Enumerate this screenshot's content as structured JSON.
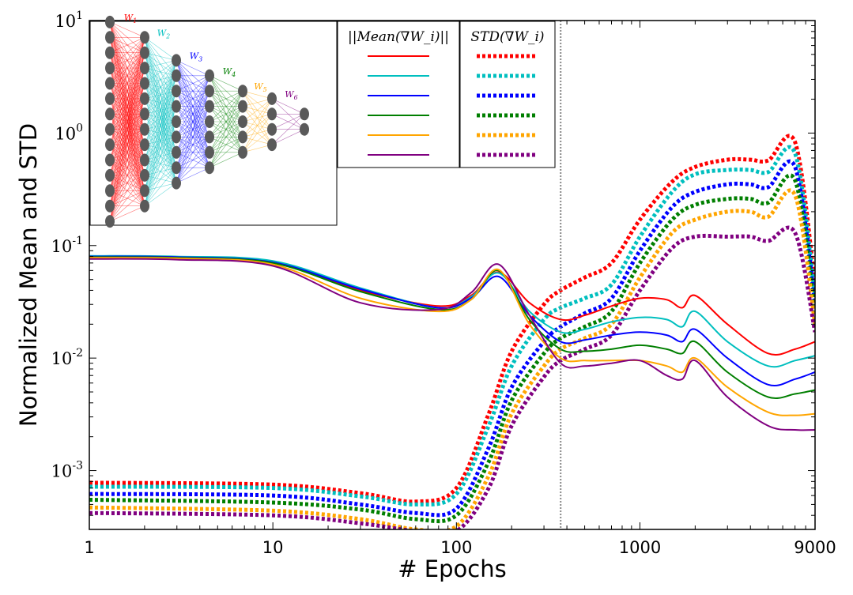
{
  "chart_data": {
    "type": "line",
    "xlabel": "# Epochs",
    "ylabel": "Normalized Mean and STD",
    "xscale": "log",
    "yscale": "log",
    "xlim": [
      1,
      9000
    ],
    "ylim": [
      0.0003,
      10
    ],
    "x_ticks": [
      "1",
      "10",
      "100",
      "1000",
      "9000"
    ],
    "x_tick_values": [
      1,
      10,
      100,
      1000,
      9000
    ],
    "y_ticks": [
      {
        "base": "10",
        "exp": "-3",
        "value": 0.001
      },
      {
        "base": "10",
        "exp": "-2",
        "value": 0.01
      },
      {
        "base": "10",
        "exp": "-1",
        "value": 0.1
      },
      {
        "base": "10",
        "exp": "0",
        "value": 1
      },
      {
        "base": "10",
        "exp": "1",
        "value": 10
      }
    ],
    "vline_x": 370,
    "grid": false,
    "legend": {
      "position": "top",
      "mean_header": "||Mean(∇W_i)||",
      "std_header": "STD(∇W_i)"
    },
    "inset": {
      "position": "top-left",
      "layers": [
        14,
        12,
        9,
        7,
        5,
        4,
        2
      ],
      "weight_labels": [
        "W1",
        "W2",
        "W3",
        "W4",
        "W5",
        "W6"
      ]
    },
    "series": [
      {
        "layer": "W1",
        "color": "#ff0000",
        "mean": {
          "x": [
            1,
            3,
            10,
            30,
            80,
            120,
            170,
            250,
            370,
            500,
            700,
            1000,
            1400,
            1700,
            2000,
            3000,
            5000,
            7000,
            9000
          ],
          "y": [
            0.079,
            0.078,
            0.07,
            0.04,
            0.029,
            0.036,
            0.058,
            0.031,
            0.022,
            0.024,
            0.029,
            0.034,
            0.033,
            0.028,
            0.036,
            0.02,
            0.011,
            0.012,
            0.014
          ]
        },
        "std": {
          "x": [
            1,
            10,
            30,
            60,
            100,
            150,
            200,
            300,
            370,
            500,
            700,
            1000,
            1500,
            2000,
            3000,
            4000,
            5000,
            7000,
            9000
          ],
          "y": [
            0.00078,
            0.00075,
            0.00063,
            0.00053,
            0.0007,
            0.0032,
            0.0115,
            0.03,
            0.04,
            0.052,
            0.07,
            0.17,
            0.37,
            0.5,
            0.58,
            0.58,
            0.57,
            0.83,
            0.045
          ]
        }
      },
      {
        "layer": "W2",
        "color": "#00bfbf",
        "mean": {
          "x": [
            1,
            3,
            10,
            30,
            80,
            120,
            170,
            250,
            370,
            500,
            700,
            1000,
            1400,
            1700,
            2000,
            3000,
            5000,
            7000,
            9000
          ],
          "y": [
            0.081,
            0.08,
            0.073,
            0.042,
            0.028,
            0.035,
            0.057,
            0.026,
            0.017,
            0.018,
            0.021,
            0.023,
            0.022,
            0.019,
            0.026,
            0.014,
            0.0085,
            0.0095,
            0.0105
          ]
        },
        "std": {
          "x": [
            1,
            10,
            30,
            60,
            100,
            150,
            200,
            300,
            370,
            500,
            700,
            1000,
            1500,
            2000,
            3000,
            4000,
            5000,
            7000,
            9000
          ],
          "y": [
            0.00072,
            0.0007,
            0.00059,
            0.0005,
            0.00062,
            0.0025,
            0.0085,
            0.022,
            0.028,
            0.034,
            0.045,
            0.12,
            0.3,
            0.43,
            0.47,
            0.47,
            0.45,
            0.66,
            0.035
          ]
        }
      },
      {
        "layer": "W3",
        "color": "#0000ff",
        "mean": {
          "x": [
            1,
            3,
            10,
            30,
            80,
            120,
            170,
            250,
            370,
            500,
            700,
            1000,
            1400,
            1700,
            2000,
            3000,
            5000,
            7000,
            9000
          ],
          "y": [
            0.08,
            0.079,
            0.071,
            0.041,
            0.028,
            0.034,
            0.053,
            0.024,
            0.014,
            0.0145,
            0.016,
            0.017,
            0.016,
            0.014,
            0.018,
            0.01,
            0.0058,
            0.0065,
            0.0075
          ]
        },
        "std": {
          "x": [
            1,
            10,
            30,
            60,
            100,
            150,
            200,
            300,
            370,
            500,
            700,
            1000,
            1500,
            2000,
            3000,
            4000,
            5000,
            7000,
            9000
          ],
          "y": [
            0.00062,
            0.0006,
            0.0005,
            0.00042,
            0.00046,
            0.0016,
            0.0055,
            0.014,
            0.019,
            0.025,
            0.034,
            0.09,
            0.22,
            0.3,
            0.35,
            0.35,
            0.33,
            0.5,
            0.03
          ]
        }
      },
      {
        "layer": "W4",
        "color": "#007f00",
        "mean": {
          "x": [
            1,
            3,
            10,
            30,
            80,
            120,
            170,
            250,
            370,
            500,
            700,
            1000,
            1400,
            1700,
            2000,
            3000,
            5000,
            7000,
            9000
          ],
          "y": [
            0.079,
            0.078,
            0.07,
            0.039,
            0.027,
            0.033,
            0.06,
            0.022,
            0.012,
            0.0115,
            0.012,
            0.013,
            0.012,
            0.011,
            0.014,
            0.0075,
            0.0045,
            0.0048,
            0.0052
          ]
        },
        "std": {
          "x": [
            1,
            10,
            30,
            60,
            100,
            150,
            200,
            300,
            370,
            500,
            700,
            1000,
            1500,
            2000,
            3000,
            4000,
            5000,
            7000,
            9000
          ],
          "y": [
            0.00055,
            0.00052,
            0.00045,
            0.00037,
            0.0004,
            0.0012,
            0.0042,
            0.011,
            0.015,
            0.019,
            0.026,
            0.07,
            0.17,
            0.23,
            0.26,
            0.26,
            0.24,
            0.38,
            0.025
          ]
        }
      },
      {
        "layer": "W5",
        "color": "#ffa500",
        "mean": {
          "x": [
            1,
            3,
            10,
            30,
            80,
            120,
            170,
            250,
            370,
            500,
            700,
            1000,
            1400,
            1700,
            2000,
            3000,
            5000,
            7000,
            9000
          ],
          "y": [
            0.078,
            0.077,
            0.068,
            0.034,
            0.026,
            0.033,
            0.061,
            0.02,
            0.01,
            0.0095,
            0.0095,
            0.0095,
            0.0085,
            0.0075,
            0.01,
            0.0055,
            0.0033,
            0.0031,
            0.0032
          ]
        },
        "std": {
          "x": [
            1,
            10,
            30,
            60,
            100,
            150,
            200,
            300,
            370,
            500,
            700,
            1000,
            1500,
            2000,
            3000,
            4000,
            5000,
            7000,
            9000
          ],
          "y": [
            0.00047,
            0.00044,
            0.00037,
            0.0003,
            0.00032,
            0.0009,
            0.0032,
            0.0085,
            0.012,
            0.015,
            0.02,
            0.052,
            0.13,
            0.17,
            0.2,
            0.2,
            0.18,
            0.28,
            0.02
          ]
        }
      },
      {
        "layer": "W6",
        "color": "#800080",
        "mean": {
          "x": [
            1,
            3,
            10,
            30,
            80,
            120,
            170,
            250,
            370,
            500,
            700,
            1000,
            1400,
            1700,
            2000,
            3000,
            5000,
            7000,
            9000
          ],
          "y": [
            0.076,
            0.075,
            0.066,
            0.031,
            0.027,
            0.038,
            0.068,
            0.024,
            0.009,
            0.0085,
            0.009,
            0.0095,
            0.007,
            0.0065,
            0.0095,
            0.0045,
            0.0025,
            0.0023,
            0.0023
          ]
        },
        "std": {
          "x": [
            1,
            10,
            30,
            60,
            100,
            150,
            200,
            300,
            370,
            500,
            700,
            1000,
            1500,
            2000,
            3000,
            4000,
            5000,
            7000,
            9000
          ],
          "y": [
            0.00042,
            0.0004,
            0.00034,
            0.00029,
            0.00029,
            0.0007,
            0.0025,
            0.0068,
            0.0095,
            0.012,
            0.016,
            0.04,
            0.095,
            0.12,
            0.12,
            0.12,
            0.11,
            0.13,
            0.017
          ]
        }
      }
    ]
  }
}
